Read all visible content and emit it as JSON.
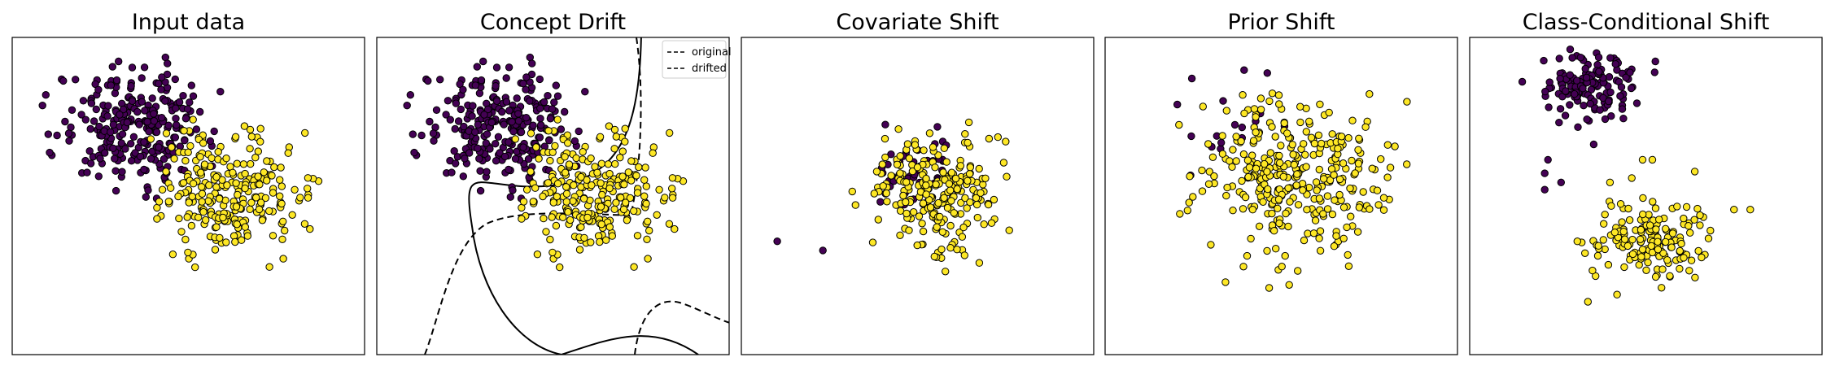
{
  "figure": {
    "panels": [
      {
        "title": "Input data",
        "key": "input"
      },
      {
        "title": "Concept Drift",
        "key": "concept",
        "legend": [
          "original",
          "drifted"
        ]
      },
      {
        "title": "Covariate Shift",
        "key": "covariate"
      },
      {
        "title": "Prior Shift",
        "key": "prior"
      },
      {
        "title": "Class-Conditional Shift",
        "key": "class_conditional"
      }
    ]
  },
  "colors": {
    "class_0": "#440154",
    "class_1": "#fde725",
    "edge": "#000000",
    "frame": "#000000"
  },
  "chart_data": [
    {
      "type": "scatter",
      "title": "Input data",
      "xlim": [
        -2.2,
        3.2
      ],
      "ylim": [
        -1.6,
        1.9
      ],
      "grid": false,
      "series": [
        {
          "class": 0,
          "cluster": {
            "cx": -0.3,
            "cy": 0.95,
            "sx": 0.58,
            "sy": 0.32,
            "count": 260,
            "min": [
              -1.75,
              0.02
            ],
            "max": [
              1.15,
              1.8
            ]
          }
        },
        {
          "class": 1,
          "cluster": {
            "cx": 1.15,
            "cy": 0.2,
            "sx": 0.62,
            "sy": 0.32,
            "count": 260,
            "min": [
              -0.1,
              -1.2
            ],
            "max": [
              2.5,
              1.1
            ]
          }
        }
      ]
    },
    {
      "type": "scatter",
      "title": "Concept Drift",
      "xlim": [
        -2.2,
        3.2
      ],
      "ylim": [
        -1.6,
        1.9
      ],
      "grid": false,
      "legend_position": "top-right",
      "boundaries": [
        {
          "name": "original",
          "style": "solid"
        },
        {
          "name": "drifted",
          "style": "dashed"
        }
      ],
      "series": [
        {
          "class": 0,
          "cluster": {
            "cx": -0.3,
            "cy": 0.95,
            "sx": 0.58,
            "sy": 0.32,
            "count": 260,
            "min": [
              -1.75,
              0.02
            ],
            "max": [
              1.15,
              1.8
            ]
          }
        },
        {
          "class": 1,
          "cluster": {
            "cx": 1.15,
            "cy": 0.2,
            "sx": 0.62,
            "sy": 0.32,
            "count": 260,
            "min": [
              -0.1,
              -1.2
            ],
            "max": [
              2.5,
              1.1
            ]
          }
        }
      ]
    },
    {
      "type": "scatter",
      "title": "Covariate Shift",
      "xlim": [
        -2.2,
        3.2
      ],
      "ylim": [
        -1.6,
        1.9
      ],
      "grid": false,
      "series": [
        {
          "class": 0,
          "cluster": {
            "cx": 0.45,
            "cy": 0.45,
            "sx": 0.4,
            "sy": 0.25,
            "count": 45,
            "min": [
              -0.1,
              0.05
            ],
            "max": [
              1.0,
              1.05
            ]
          }
        },
        {
          "class": 1,
          "cluster": {
            "cx": 0.8,
            "cy": 0.15,
            "sx": 0.5,
            "sy": 0.32,
            "count": 230,
            "min": [
              -0.2,
              -0.9
            ],
            "max": [
              2.0,
              1.05
            ]
          }
        },
        {
          "class": 0,
          "points": [
            [
              -1.65,
              -0.35
            ],
            [
              -0.95,
              -0.45
            ]
          ]
        },
        {
          "class": 1,
          "points": [
            [
              -0.5,
              0.2
            ],
            [
              -0.45,
              0.05
            ],
            [
              1.85,
              0.75
            ]
          ]
        }
      ]
    },
    {
      "type": "scatter",
      "title": "Prior Shift",
      "xlim": [
        -2.2,
        3.2
      ],
      "ylim": [
        -1.6,
        1.9
      ],
      "grid": false,
      "series": [
        {
          "class": 0,
          "cluster": {
            "cx": -0.2,
            "cy": 0.95,
            "sx": 0.5,
            "sy": 0.3,
            "count": 18,
            "min": [
              -1.3,
              0.2
            ],
            "max": [
              1.0,
              1.6
            ]
          }
        },
        {
          "class": 1,
          "cluster": {
            "cx": 0.65,
            "cy": 0.4,
            "sx": 0.72,
            "sy": 0.42,
            "count": 330,
            "min": [
              -1.2,
              -1.2
            ],
            "max": [
              2.5,
              1.3
            ]
          }
        }
      ]
    },
    {
      "type": "scatter",
      "title": "Class-Conditional Shift",
      "xlim": [
        -2.2,
        3.2
      ],
      "ylim": [
        -1.6,
        1.9
      ],
      "grid": false,
      "series": [
        {
          "class": 0,
          "cluster": {
            "cx": -0.35,
            "cy": 1.35,
            "sx": 0.42,
            "sy": 0.18,
            "count": 140,
            "min": [
              -1.4,
              0.9
            ],
            "max": [
              0.7,
              1.8
            ]
          }
        },
        {
          "class": 1,
          "cluster": {
            "cx": 0.55,
            "cy": -0.35,
            "sx": 0.45,
            "sy": 0.24,
            "count": 160,
            "min": [
              -0.5,
              -1.2
            ],
            "max": [
              1.65,
              0.35
            ]
          }
        },
        {
          "class": 0,
          "points": [
            [
              -1.0,
              0.55
            ],
            [
              -1.05,
              0.4
            ],
            [
              -1.05,
              0.22
            ],
            [
              -0.3,
              0.72
            ],
            [
              -0.8,
              0.3
            ]
          ]
        },
        {
          "class": 1,
          "points": [
            [
              0.45,
              0.55
            ],
            [
              0.6,
              0.55
            ],
            [
              1.25,
              0.42
            ],
            [
              -0.05,
              0.3
            ],
            [
              -0.55,
              -0.35
            ],
            [
              2.1,
              0.0
            ],
            [
              1.85,
              0.0
            ]
          ]
        }
      ]
    }
  ]
}
